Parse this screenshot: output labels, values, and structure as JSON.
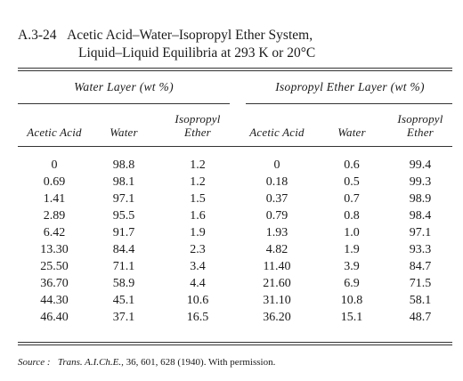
{
  "title": {
    "number": "A.3-24",
    "line1": "Acetic Acid–Water–Isopropyl Ether System,",
    "line2": "Liquid–Liquid Equilibria at 293 K or 20°C"
  },
  "groups": [
    {
      "label": "Water Layer (wt %)"
    },
    {
      "label": "Isopropyl Ether Layer (wt %)"
    }
  ],
  "columns": [
    {
      "line1": "",
      "line2": "Acetic Acid"
    },
    {
      "line1": "",
      "line2": "Water"
    },
    {
      "line1": "Isopropyl",
      "line2": "Ether"
    },
    {
      "line1": "",
      "line2": "Acetic Acid"
    },
    {
      "line1": "",
      "line2": "Water"
    },
    {
      "line1": "Isopropyl",
      "line2": "Ether"
    }
  ],
  "rows": [
    [
      "0",
      "98.8",
      "1.2",
      "0",
      "0.6",
      "99.4"
    ],
    [
      "0.69",
      "98.1",
      "1.2",
      "0.18",
      "0.5",
      "99.3"
    ],
    [
      "1.41",
      "97.1",
      "1.5",
      "0.37",
      "0.7",
      "98.9"
    ],
    [
      "2.89",
      "95.5",
      "1.6",
      "0.79",
      "0.8",
      "98.4"
    ],
    [
      "6.42",
      "91.7",
      "1.9",
      "1.93",
      "1.0",
      "97.1"
    ],
    [
      "13.30",
      "84.4",
      "2.3",
      "4.82",
      "1.9",
      "93.3"
    ],
    [
      "25.50",
      "71.1",
      "3.4",
      "11.40",
      "3.9",
      "84.7"
    ],
    [
      "36.70",
      "58.9",
      "4.4",
      "21.60",
      "6.9",
      "71.5"
    ],
    [
      "44.30",
      "45.1",
      "10.6",
      "31.10",
      "10.8",
      "58.1"
    ],
    [
      "46.40",
      "37.1",
      "16.5",
      "36.20",
      "15.1",
      "48.7"
    ]
  ],
  "source": {
    "label": "Source :",
    "journal": "Trans. A.I.Ch.E.,",
    "citation": "36, 601, 628 (1940). With permission."
  }
}
